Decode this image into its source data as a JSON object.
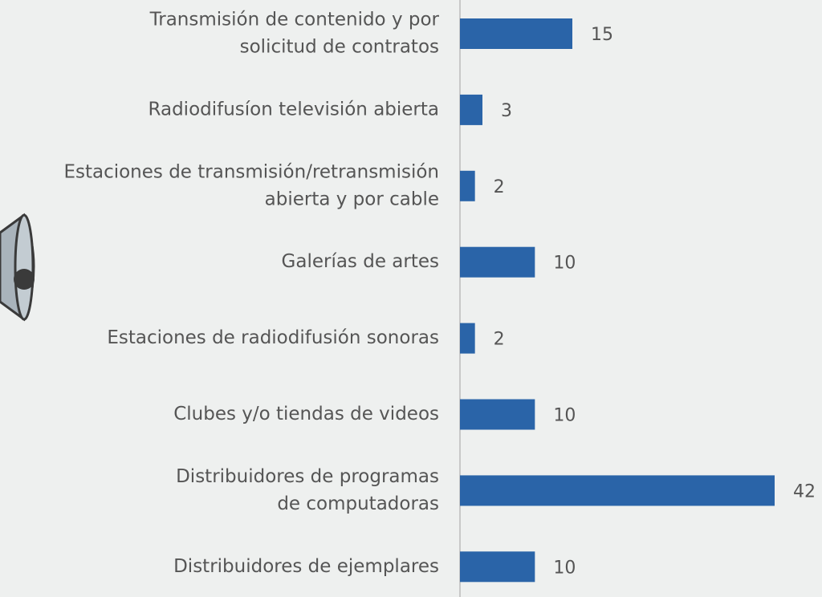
{
  "chart_data": {
    "type": "bar",
    "orientation": "horizontal",
    "color": "#2a64a8",
    "categories": [
      [
        "Transmisión de contenido y por",
        "solicitud de contratos"
      ],
      [
        "Radiodifusíon televisión abierta"
      ],
      [
        "Estaciones de transmisión/retransmisión",
        "abierta y por cable"
      ],
      [
        "Galerías de artes"
      ],
      [
        "Estaciones de radiodifusión sonoras"
      ],
      [
        "Clubes y/o tiendas de videos"
      ],
      [
        "Distribuidores de programas",
        "de computadoras"
      ],
      [
        "Distribuidores de ejemplares"
      ]
    ],
    "values": [
      15,
      3,
      2,
      10,
      2,
      10,
      42,
      10
    ]
  }
}
